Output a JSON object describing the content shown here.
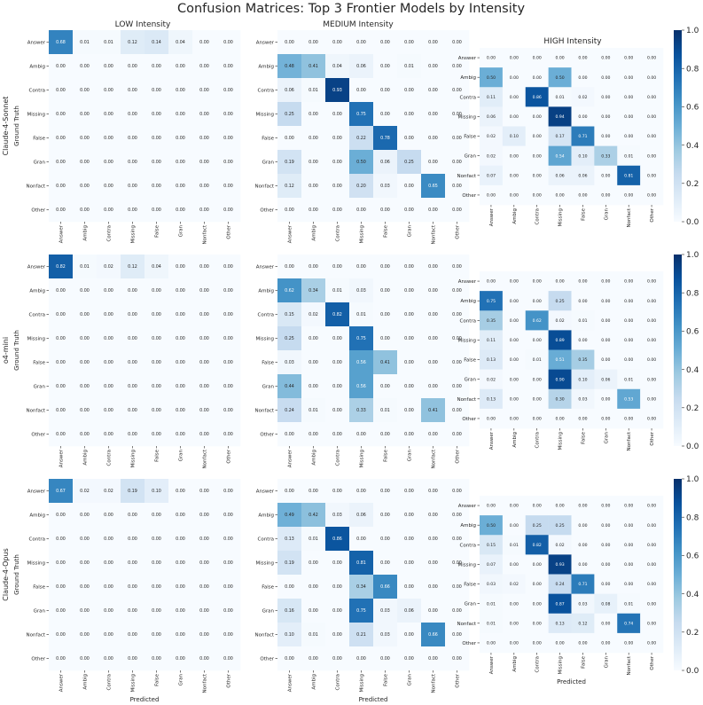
{
  "figure": {
    "title": "Confusion Matrices: Top 3 Frontier Models by Intensity",
    "intensity_titles": [
      "LOW Intensity",
      "MEDIUM Intensity",
      "HIGH Intensity"
    ],
    "model_labels": [
      "Claude-4-Sonnet",
      "o4-mini",
      "Claude-4-Opus"
    ],
    "ylabel": "Ground Truth",
    "xlabel": "Predicted",
    "colormap": {
      "low": "#f7fbff",
      "high": "#08306b"
    }
  },
  "chart_data": {
    "type": "heatmap",
    "categories": [
      "Answer",
      "Ambig",
      "Contra",
      "Missing",
      "False",
      "Gran",
      "Nonfact",
      "Other"
    ],
    "colorbar_ticks": [
      "0.0",
      "0.2",
      "0.4",
      "0.6",
      "0.8",
      "1.0"
    ],
    "colorbar_range": [
      0,
      1
    ],
    "matrices": [
      {
        "model": "Claude-4-Sonnet",
        "intensity": "LOW",
        "values": [
          [
            0.68,
            0.01,
            0.01,
            0.12,
            0.14,
            0.04,
            0.0,
            0.0
          ],
          [
            0.0,
            0.0,
            0.0,
            0.0,
            0.0,
            0.0,
            0.0,
            0.0
          ],
          [
            0.0,
            0.0,
            0.0,
            0.0,
            0.0,
            0.0,
            0.0,
            0.0
          ],
          [
            0.0,
            0.0,
            0.0,
            0.0,
            0.0,
            0.0,
            0.0,
            0.0
          ],
          [
            0.0,
            0.0,
            0.0,
            0.0,
            0.0,
            0.0,
            0.0,
            0.0
          ],
          [
            0.0,
            0.0,
            0.0,
            0.0,
            0.0,
            0.0,
            0.0,
            0.0
          ],
          [
            0.0,
            0.0,
            0.0,
            0.0,
            0.0,
            0.0,
            0.0,
            0.0
          ],
          [
            0.0,
            0.0,
            0.0,
            0.0,
            0.0,
            0.0,
            0.0,
            0.0
          ]
        ]
      },
      {
        "model": "Claude-4-Sonnet",
        "intensity": "MEDIUM",
        "values": [
          [
            0.0,
            0.0,
            0.0,
            0.0,
            0.0,
            0.0,
            0.0,
            0.0
          ],
          [
            0.48,
            0.41,
            0.04,
            0.06,
            0.0,
            0.01,
            0.0,
            0.0
          ],
          [
            0.06,
            0.01,
            0.93,
            0.0,
            0.0,
            0.0,
            0.0,
            0.0
          ],
          [
            0.25,
            0.0,
            0.0,
            0.75,
            0.0,
            0.0,
            0.0,
            0.0
          ],
          [
            0.0,
            0.0,
            0.0,
            0.22,
            0.78,
            0.0,
            0.0,
            0.0
          ],
          [
            0.19,
            0.0,
            0.0,
            0.5,
            0.06,
            0.25,
            0.0,
            0.0
          ],
          [
            0.12,
            0.0,
            0.0,
            0.2,
            0.03,
            0.0,
            0.65,
            0.0
          ],
          [
            0.0,
            0.0,
            0.0,
            0.0,
            0.0,
            0.0,
            0.0,
            0.0
          ]
        ]
      },
      {
        "model": "Claude-4-Sonnet",
        "intensity": "HIGH",
        "values": [
          [
            0.0,
            0.0,
            0.0,
            0.0,
            0.0,
            0.0,
            0.0,
            0.0
          ],
          [
            0.5,
            0.0,
            0.0,
            0.5,
            0.0,
            0.0,
            0.0,
            0.0
          ],
          [
            0.11,
            0.0,
            0.86,
            0.01,
            0.02,
            0.0,
            0.0,
            0.0
          ],
          [
            0.06,
            0.0,
            0.0,
            0.94,
            0.0,
            0.0,
            0.0,
            0.0
          ],
          [
            0.02,
            0.1,
            0.0,
            0.17,
            0.71,
            0.0,
            0.0,
            0.0
          ],
          [
            0.02,
            0.0,
            0.0,
            0.54,
            0.1,
            0.33,
            0.01,
            0.0
          ],
          [
            0.07,
            0.0,
            0.0,
            0.06,
            0.06,
            0.0,
            0.81,
            0.0
          ],
          [
            0.0,
            0.0,
            0.0,
            0.0,
            0.0,
            0.0,
            0.0,
            0.0
          ]
        ]
      },
      {
        "model": "o4-mini",
        "intensity": "LOW",
        "values": [
          [
            0.82,
            0.01,
            0.02,
            0.12,
            0.04,
            0.0,
            0.0,
            0.0
          ],
          [
            0.0,
            0.0,
            0.0,
            0.0,
            0.0,
            0.0,
            0.0,
            0.0
          ],
          [
            0.0,
            0.0,
            0.0,
            0.0,
            0.0,
            0.0,
            0.0,
            0.0
          ],
          [
            0.0,
            0.0,
            0.0,
            0.0,
            0.0,
            0.0,
            0.0,
            0.0
          ],
          [
            0.0,
            0.0,
            0.0,
            0.0,
            0.0,
            0.0,
            0.0,
            0.0
          ],
          [
            0.0,
            0.0,
            0.0,
            0.0,
            0.0,
            0.0,
            0.0,
            0.0
          ],
          [
            0.0,
            0.0,
            0.0,
            0.0,
            0.0,
            0.0,
            0.0,
            0.0
          ],
          [
            0.0,
            0.0,
            0.0,
            0.0,
            0.0,
            0.0,
            0.0,
            0.0
          ]
        ]
      },
      {
        "model": "o4-mini",
        "intensity": "MEDIUM",
        "values": [
          [
            0.0,
            0.0,
            0.0,
            0.0,
            0.0,
            0.0,
            0.0,
            0.0
          ],
          [
            0.62,
            0.34,
            0.01,
            0.03,
            0.0,
            0.0,
            0.0,
            0.0
          ],
          [
            0.15,
            0.02,
            0.82,
            0.01,
            0.0,
            0.0,
            0.0,
            0.0
          ],
          [
            0.25,
            0.0,
            0.0,
            0.75,
            0.0,
            0.0,
            0.0,
            0.0
          ],
          [
            0.03,
            0.0,
            0.0,
            0.56,
            0.41,
            0.0,
            0.0,
            0.0
          ],
          [
            0.44,
            0.0,
            0.0,
            0.56,
            0.0,
            0.0,
            0.0,
            0.0
          ],
          [
            0.24,
            0.01,
            0.0,
            0.33,
            0.01,
            0.0,
            0.41,
            0.0
          ],
          [
            0.0,
            0.0,
            0.0,
            0.0,
            0.0,
            0.0,
            0.0,
            0.0
          ]
        ]
      },
      {
        "model": "o4-mini",
        "intensity": "HIGH",
        "values": [
          [
            0.0,
            0.0,
            0.0,
            0.0,
            0.0,
            0.0,
            0.0,
            0.0
          ],
          [
            0.75,
            0.0,
            0.0,
            0.25,
            0.0,
            0.0,
            0.0,
            0.0
          ],
          [
            0.35,
            0.0,
            0.62,
            0.02,
            0.01,
            0.0,
            0.0,
            0.0
          ],
          [
            0.11,
            0.0,
            0.0,
            0.89,
            0.0,
            0.0,
            0.0,
            0.0
          ],
          [
            0.13,
            0.0,
            0.01,
            0.51,
            0.35,
            0.0,
            0.0,
            0.0
          ],
          [
            0.02,
            0.0,
            0.0,
            0.9,
            0.1,
            0.06,
            0.01,
            0.0
          ],
          [
            0.13,
            0.0,
            0.0,
            0.3,
            0.03,
            0.0,
            0.53,
            0.0
          ],
          [
            0.0,
            0.0,
            0.0,
            0.0,
            0.0,
            0.0,
            0.0,
            0.0
          ]
        ]
      },
      {
        "model": "Claude-4-Opus",
        "intensity": "LOW",
        "values": [
          [
            0.67,
            0.02,
            0.02,
            0.19,
            0.1,
            0.0,
            0.0,
            0.0
          ],
          [
            0.0,
            0.0,
            0.0,
            0.0,
            0.0,
            0.0,
            0.0,
            0.0
          ],
          [
            0.0,
            0.0,
            0.0,
            0.0,
            0.0,
            0.0,
            0.0,
            0.0
          ],
          [
            0.0,
            0.0,
            0.0,
            0.0,
            0.0,
            0.0,
            0.0,
            0.0
          ],
          [
            0.0,
            0.0,
            0.0,
            0.0,
            0.0,
            0.0,
            0.0,
            0.0
          ],
          [
            0.0,
            0.0,
            0.0,
            0.0,
            0.0,
            0.0,
            0.0,
            0.0
          ],
          [
            0.0,
            0.0,
            0.0,
            0.0,
            0.0,
            0.0,
            0.0,
            0.0
          ],
          [
            0.0,
            0.0,
            0.0,
            0.0,
            0.0,
            0.0,
            0.0,
            0.0
          ]
        ]
      },
      {
        "model": "Claude-4-Opus",
        "intensity": "MEDIUM",
        "values": [
          [
            0.0,
            0.0,
            0.0,
            0.0,
            0.0,
            0.0,
            0.0,
            0.0
          ],
          [
            0.49,
            0.42,
            0.03,
            0.06,
            0.0,
            0.0,
            0.0,
            0.0
          ],
          [
            0.13,
            0.01,
            0.86,
            0.0,
            0.0,
            0.0,
            0.0,
            0.0
          ],
          [
            0.19,
            0.0,
            0.0,
            0.81,
            0.0,
            0.0,
            0.0,
            0.0
          ],
          [
            0.0,
            0.0,
            0.0,
            0.34,
            0.66,
            0.0,
            0.0,
            0.0
          ],
          [
            0.16,
            0.0,
            0.0,
            0.75,
            0.03,
            0.06,
            0.0,
            0.0
          ],
          [
            0.1,
            0.01,
            0.0,
            0.21,
            0.03,
            0.0,
            0.66,
            0.0
          ],
          [
            0.0,
            0.0,
            0.0,
            0.0,
            0.0,
            0.0,
            0.0,
            0.0
          ]
        ]
      },
      {
        "model": "Claude-4-Opus",
        "intensity": "HIGH",
        "values": [
          [
            0.0,
            0.0,
            0.0,
            0.0,
            0.0,
            0.0,
            0.0,
            0.0
          ],
          [
            0.5,
            0.0,
            0.25,
            0.25,
            0.0,
            0.0,
            0.0,
            0.0
          ],
          [
            0.15,
            0.01,
            0.82,
            0.02,
            0.0,
            0.0,
            0.0,
            0.0
          ],
          [
            0.07,
            0.0,
            0.0,
            0.93,
            0.0,
            0.0,
            0.0,
            0.0
          ],
          [
            0.03,
            0.02,
            0.0,
            0.24,
            0.71,
            0.0,
            0.0,
            0.0
          ],
          [
            0.01,
            0.0,
            0.0,
            0.87,
            0.03,
            0.08,
            0.01,
            0.0
          ],
          [
            0.01,
            0.0,
            0.0,
            0.13,
            0.12,
            0.0,
            0.74,
            0.0
          ],
          [
            0.0,
            0.0,
            0.0,
            0.0,
            0.0,
            0.0,
            0.0,
            0.0
          ]
        ]
      }
    ]
  }
}
